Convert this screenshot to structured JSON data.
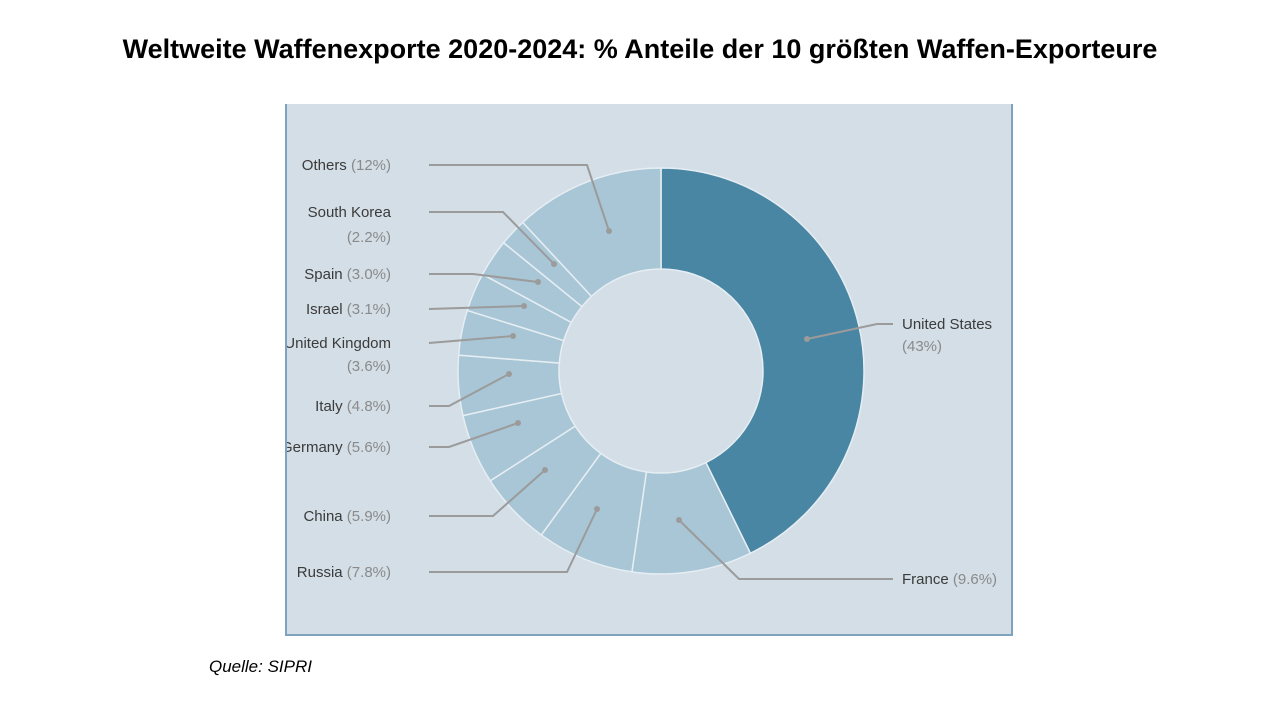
{
  "slide": {
    "title": "Weltweite Waffenexporte 2020-2024:  % Anteile der 10 größten Waffen-Exporteure",
    "source": "Quelle: SIPRI"
  },
  "chart_data": {
    "type": "pie",
    "subtype": "donut",
    "start": "top",
    "direction": "clockwise",
    "categories": [
      "United States",
      "France",
      "Russia",
      "China",
      "Germany",
      "Italy",
      "United Kingdom",
      "Israel",
      "Spain",
      "South Korea",
      "Others"
    ],
    "values": [
      43,
      9.6,
      7.8,
      5.9,
      5.6,
      4.8,
      3.6,
      3.1,
      3.0,
      2.2,
      12
    ],
    "labels": [
      {
        "name": "United States",
        "pct": "(43%)"
      },
      {
        "name": "France",
        "pct": "(9.6%)"
      },
      {
        "name": "Russia",
        "pct": "(7.8%)"
      },
      {
        "name": "China",
        "pct": "(5.9%)"
      },
      {
        "name": "Germany",
        "pct": "(5.6%)"
      },
      {
        "name": "Italy",
        "pct": "(4.8%)"
      },
      {
        "name": "United Kingdom",
        "pct": "(3.6%)"
      },
      {
        "name": "Israel",
        "pct": "(3.1%)"
      },
      {
        "name": "Spain",
        "pct": "(3.0%)"
      },
      {
        "name": "South Korea",
        "pct": "(2.2%)"
      },
      {
        "name": "Others",
        "pct": "(12%)"
      }
    ],
    "colors": {
      "highlight": "#4886a4",
      "others": "#a8c6d6",
      "panel": "#d3dee6",
      "leader": "#9b9b9b",
      "separator": "#e6eef3"
    }
  }
}
